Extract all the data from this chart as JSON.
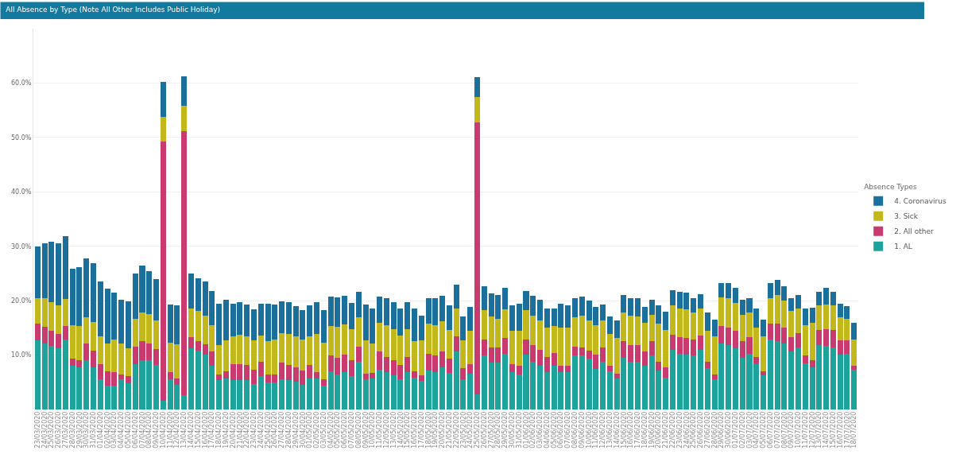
{
  "chart_data": {
    "type": "bar",
    "title": "All Absence by Type (Note All Other Includes Public Holiday)",
    "legend_title": "Absence Types",
    "stacked": true,
    "legend": "right",
    "grid": "y",
    "categories": [
      "23/03/2020",
      "24/03/2020",
      "25/03/2020",
      "26/03/2020",
      "27/03/2020",
      "28/03/2020",
      "29/03/2020",
      "30/03/2020",
      "31/03/2020",
      "01/04/2020",
      "02/04/2020",
      "03/04/2020",
      "04/04/2020",
      "05/04/2020",
      "06/04/2020",
      "07/04/2020",
      "08/04/2020",
      "09/04/2020",
      "10/04/2020",
      "11/04/2020",
      "12/04/2020",
      "13/04/2020",
      "14/04/2020",
      "15/04/2020",
      "16/04/2020",
      "17/04/2020",
      "18/04/2020",
      "19/04/2020",
      "20/04/2020",
      "21/04/2020",
      "22/04/2020",
      "23/04/2020",
      "24/04/2020",
      "25/04/2020",
      "26/04/2020",
      "27/04/2020",
      "28/04/2020",
      "29/04/2020",
      "30/04/2020",
      "01/05/2020",
      "02/05/2020",
      "03/05/2020",
      "04/05/2020",
      "05/05/2020",
      "06/05/2020",
      "07/05/2020",
      "08/05/2020",
      "09/05/2020",
      "10/05/2020",
      "11/05/2020",
      "12/05/2020",
      "13/05/2020",
      "14/05/2020",
      "15/05/2020",
      "16/05/2020",
      "17/05/2020",
      "18/05/2020",
      "19/05/2020",
      "20/05/2020",
      "21/05/2020",
      "22/05/2020",
      "23/05/2020",
      "24/05/2020",
      "25/05/2020",
      "26/05/2020",
      "27/05/2020",
      "28/05/2020",
      "29/05/2020",
      "30/05/2020",
      "31/05/2020",
      "01/06/2020",
      "02/06/2020",
      "03/06/2020",
      "04/06/2020",
      "05/06/2020",
      "06/06/2020",
      "07/06/2020",
      "08/06/2020",
      "09/06/2020",
      "10/06/2020",
      "11/06/2020",
      "12/06/2020",
      "13/06/2020",
      "14/06/2020",
      "15/06/2020",
      "16/06/2020",
      "17/06/2020",
      "18/06/2020",
      "19/06/2020",
      "20/06/2020",
      "21/06/2020",
      "22/06/2020",
      "23/06/2020",
      "24/06/2020",
      "25/06/2020",
      "26/06/2020",
      "27/06/2020",
      "28/06/2020",
      "29/06/2020",
      "30/06/2020",
      "01/07/2020",
      "02/07/2020",
      "03/07/2020",
      "04/07/2020",
      "05/07/2020",
      "06/07/2020",
      "07/07/2020",
      "08/07/2020",
      "09/07/2020",
      "10/07/2020",
      "11/07/2020",
      "12/07/2020",
      "13/07/2020",
      "14/07/2020",
      "15/07/2020",
      "16/07/2020",
      "17/07/2020",
      "18/07/2020"
    ],
    "ylim": [
      0,
      70
    ],
    "yticks": [
      {
        "value": 10,
        "label": "10.0%"
      },
      {
        "value": 20,
        "label": "20.0%"
      },
      {
        "value": 30,
        "label": "30.0%"
      },
      {
        "value": 40,
        "label": "40.0%"
      },
      {
        "value": 50,
        "label": "50.0%"
      },
      {
        "value": 60,
        "label": "60.0%"
      }
    ],
    "series": [
      {
        "name": "1. AL",
        "color": "#1ea39c",
        "values": [
          12.7,
          12.2,
          11.7,
          11.3,
          12.8,
          8.0,
          7.7,
          9.1,
          7.7,
          5.6,
          4.4,
          4.4,
          5.5,
          4.8,
          8.3,
          9.0,
          9.0,
          8.2,
          1.6,
          5.5,
          4.5,
          2.7,
          11.2,
          10.8,
          10.1,
          8.1,
          5.4,
          5.7,
          5.4,
          5.4,
          5.4,
          4.7,
          6.2,
          5.0,
          5.0,
          5.6,
          5.4,
          5.1,
          4.5,
          5.7,
          5.7,
          4.4,
          7.0,
          6.4,
          6.9,
          6.2,
          8.7,
          5.5,
          5.7,
          7.3,
          6.8,
          6.3,
          5.5,
          6.8,
          5.9,
          5.3,
          7.1,
          6.9,
          7.7,
          6.7,
          10.7,
          5.6,
          6.6,
          2.8,
          9.9,
          8.6,
          8.6,
          10.2,
          6.8,
          6.5,
          10.1,
          8.7,
          8.0,
          6.8,
          8.0,
          6.8,
          6.8,
          10.0,
          9.9,
          9.4,
          7.4,
          8.8,
          7.0,
          5.7,
          9.5,
          8.8,
          8.7,
          8.0,
          10.0,
          7.1,
          5.9,
          10.9,
          10.2,
          10.1,
          10.0,
          10.9,
          7.6,
          5.6,
          12.2,
          11.8,
          11.2,
          9.5,
          10.2,
          8.3,
          6.3,
          12.8,
          12.6,
          12.1,
          10.7,
          11.4,
          8.5,
          7.7,
          11.8,
          11.7,
          11.4,
          10.1,
          10.2,
          7.3
        ]
      },
      {
        "name": "2. All other",
        "color": "#c93a6e",
        "values": [
          3.1,
          3.0,
          2.8,
          2.6,
          2.5,
          1.4,
          1.4,
          3.0,
          3.1,
          2.7,
          2.6,
          2.4,
          1.0,
          1.4,
          3.2,
          3.5,
          3.2,
          2.9,
          47.7,
          1.4,
          1.2,
          48.5,
          2.1,
          1.7,
          1.9,
          2.5,
          1.0,
          1.3,
          3.0,
          3.0,
          2.8,
          2.6,
          2.5,
          1.5,
          1.5,
          3.0,
          2.8,
          2.7,
          2.6,
          2.5,
          1.1,
          1.1,
          2.9,
          3.1,
          3.2,
          2.9,
          2.8,
          1.1,
          1.0,
          3.4,
          2.8,
          2.8,
          2.7,
          2.8,
          1.1,
          1.0,
          3.1,
          3.1,
          3.0,
          2.7,
          2.8,
          2.0,
          1.8,
          49.9,
          3.0,
          2.8,
          2.8,
          2.9,
          1.5,
          1.6,
          2.8,
          3.2,
          3.0,
          2.9,
          2.4,
          1.2,
          1.2,
          1.6,
          1.5,
          1.4,
          2.7,
          2.6,
          1.0,
          0.9,
          3.1,
          3.1,
          3.1,
          2.7,
          2.6,
          1.6,
          1.8,
          2.9,
          3.1,
          3.1,
          2.9,
          2.7,
          1.2,
          0.9,
          3.2,
          3.3,
          3.2,
          3.0,
          3.1,
          1.3,
          0.7,
          3.0,
          3.2,
          3.0,
          2.6,
          2.6,
          1.5,
          1.4,
          2.8,
          3.0,
          3.2,
          2.6,
          2.5,
          0.8
        ]
      },
      {
        "name": "3. Sick",
        "color": "#c2b81c",
        "values": [
          4.7,
          5.2,
          5.3,
          5.2,
          5.0,
          6.1,
          6.2,
          4.9,
          5.3,
          5.1,
          5.2,
          6.1,
          5.6,
          5.1,
          5.1,
          5.3,
          5.4,
          5.2,
          4.5,
          5.4,
          6.3,
          4.6,
          5.3,
          5.6,
          5.2,
          4.9,
          5.4,
          5.7,
          5.0,
          5.3,
          5.2,
          5.4,
          4.9,
          6.1,
          6.3,
          5.5,
          5.7,
          5.6,
          5.7,
          5.3,
          7.1,
          6.8,
          5.5,
          5.7,
          5.5,
          5.6,
          5.5,
          6.1,
          5.4,
          5.3,
          5.9,
          5.7,
          5.4,
          5.2,
          5.6,
          6.4,
          5.6,
          5.5,
          5.5,
          5.2,
          5.1,
          5.1,
          6.1,
          4.8,
          5.3,
          5.7,
          5.3,
          5.3,
          6.2,
          6.4,
          5.3,
          5.4,
          5.4,
          5.4,
          4.9,
          7.1,
          7.1,
          5.4,
          5.8,
          5.6,
          5.4,
          5.0,
          5.9,
          6.6,
          5.2,
          5.3,
          5.3,
          5.2,
          4.8,
          7.1,
          6.9,
          5.3,
          5.3,
          5.2,
          4.9,
          4.9,
          5.6,
          7.0,
          5.2,
          5.3,
          5.2,
          4.9,
          4.6,
          5.4,
          6.5,
          4.7,
          5.2,
          4.9,
          4.8,
          4.5,
          5.5,
          6.9,
          4.5,
          4.6,
          4.5,
          4.3,
          4.0,
          4.7
        ]
      },
      {
        "name": "4. Coronavirus",
        "color": "#1a6f9b",
        "values": [
          9.4,
          10.2,
          11.0,
          11.4,
          11.5,
          10.3,
          10.9,
          10.7,
          10.8,
          10.1,
          10.0,
          8.6,
          8.1,
          8.6,
          8.4,
          8.6,
          7.8,
          7.6,
          6.4,
          7.0,
          7.2,
          5.5,
          6.4,
          6.0,
          6.4,
          6.3,
          7.7,
          7.5,
          6.1,
          6.0,
          5.9,
          5.7,
          5.9,
          6.9,
          6.5,
          5.8,
          5.8,
          5.6,
          5.5,
          5.6,
          5.8,
          5.9,
          5.4,
          5.4,
          5.3,
          4.9,
          4.7,
          6.6,
          6.4,
          4.7,
          5.0,
          4.9,
          4.9,
          4.9,
          6.0,
          4.6,
          4.6,
          4.9,
          4.7,
          4.6,
          4.3,
          4.4,
          4.4,
          3.6,
          4.5,
          4.3,
          4.3,
          4.0,
          4.7,
          5.0,
          3.6,
          3.6,
          3.7,
          3.5,
          3.2,
          4.4,
          4.0,
          3.4,
          3.6,
          3.6,
          3.3,
          2.9,
          3.2,
          3.1,
          3.3,
          3.3,
          3.3,
          3.0,
          2.8,
          3.3,
          3.4,
          2.8,
          3.0,
          3.1,
          2.6,
          2.7,
          3.4,
          3.0,
          2.6,
          2.8,
          2.8,
          2.8,
          2.5,
          3.5,
          3.0,
          2.8,
          2.8,
          2.7,
          2.3,
          2.5,
          3.1,
          2.7,
          2.5,
          3.0,
          2.5,
          2.5,
          2.3,
          3.1
        ]
      }
    ]
  }
}
